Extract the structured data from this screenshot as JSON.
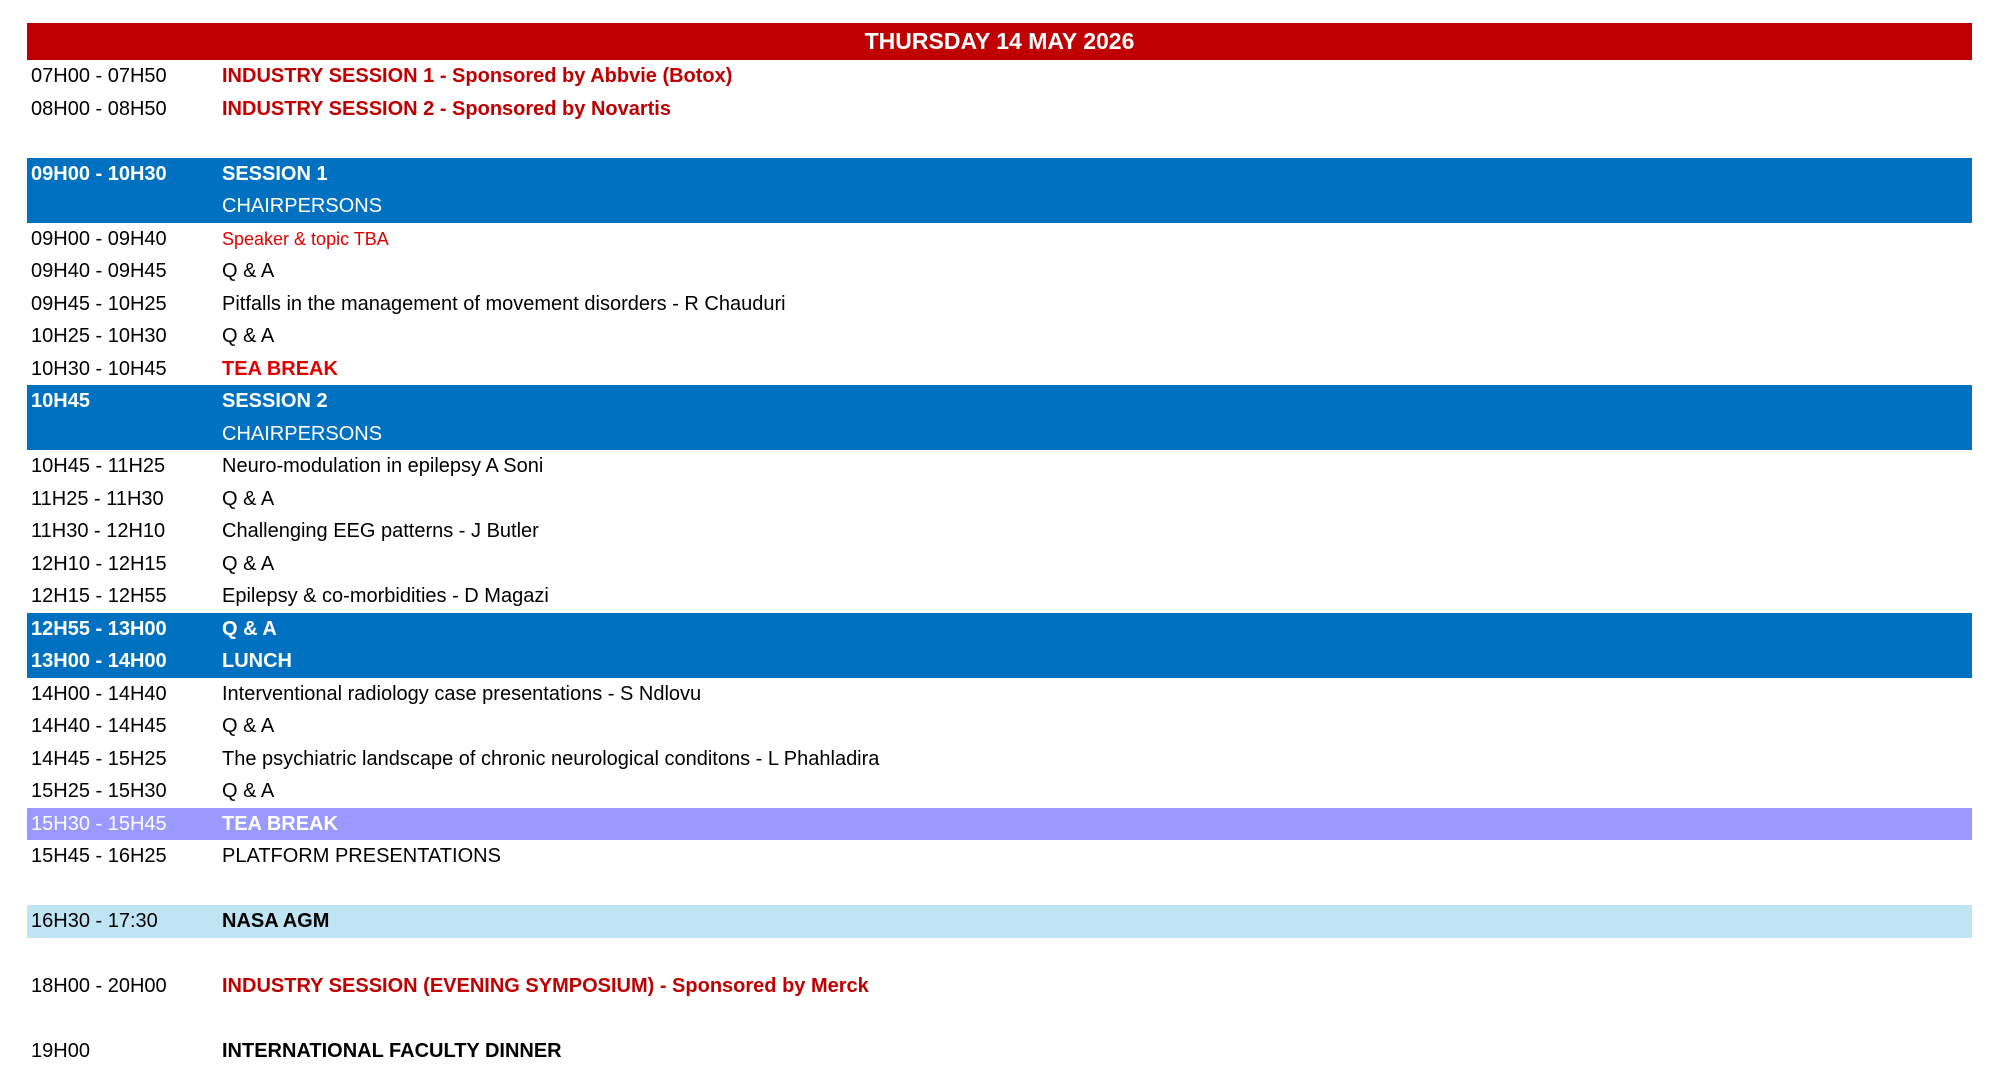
{
  "header": {
    "title": "THURSDAY 14 MAY 2026",
    "color": "#c00000"
  },
  "rows": [
    {
      "time": "07H00 - 07H50",
      "text": "INDUSTRY SESSION 1 - Sponsored by Abbvie (Botox)",
      "style": "red"
    },
    {
      "time": "08H00 - 08H50",
      "text": "INDUSTRY SESSION 2 - Sponsored by Novartis",
      "style": "red"
    },
    {
      "time": "",
      "text": "",
      "style": "blank"
    },
    {
      "time": "09H00 - 10H30",
      "text": "SESSION 1",
      "style": "blue-bold"
    },
    {
      "time": "",
      "text": "CHAIRPERSONS",
      "style": "blue"
    },
    {
      "time": "09H00 - 09H40",
      "text": "Speaker & topic TBA",
      "style": "red-small"
    },
    {
      "time": "09H40 - 09H45",
      "text": "Q & A",
      "style": "normal"
    },
    {
      "time": "09H45 - 10H25",
      "text": "Pitfalls in the management of movement disorders - R Chauduri",
      "style": "normal"
    },
    {
      "time": "10H25 - 10H30",
      "text": "Q & A",
      "style": "normal"
    },
    {
      "time": "10H30 - 10H45",
      "text": "TEA BREAK",
      "style": "red-bold"
    },
    {
      "time": "10H45",
      "text": "SESSION 2",
      "style": "blue-bold"
    },
    {
      "time": "",
      "text": "CHAIRPERSONS",
      "style": "blue"
    },
    {
      "time": "10H45 - 11H25",
      "text": "Neuro-modulation in epilepsy A Soni",
      "style": "normal"
    },
    {
      "time": "11H25 - 11H30",
      "text": "Q & A",
      "style": "normal"
    },
    {
      "time": "11H30 - 12H10",
      "text": "Challenging EEG patterns - J Butler",
      "style": "normal"
    },
    {
      "time": "12H10 - 12H15",
      "text": "Q & A",
      "style": "normal"
    },
    {
      "time": "12H15 - 12H55",
      "text": "Epilepsy & co-morbidities - D Magazi",
      "style": "normal"
    },
    {
      "time": "12H55 - 13H00",
      "text": "Q & A",
      "style": "blue-bold"
    },
    {
      "time": "13H00 - 14H00",
      "text": "LUNCH",
      "style": "blue-bold"
    },
    {
      "time": "14H00 - 14H40",
      "text": "Interventional radiology case presentations - S Ndlovu",
      "style": "normal"
    },
    {
      "time": "14H40 - 14H45",
      "text": "Q & A",
      "style": "normal"
    },
    {
      "time": "14H45 - 15H25",
      "text": "The psychiatric landscape of chronic neurological conditons - L Phahladira",
      "style": "normal"
    },
    {
      "time": "15H25 - 15H30",
      "text": "Q & A",
      "style": "normal"
    },
    {
      "time": "15H30 - 15H45",
      "text": "TEA BREAK",
      "style": "purple"
    },
    {
      "time": "15H45 - 16H25",
      "text": "PLATFORM PRESENTATIONS",
      "style": "normal"
    },
    {
      "time": "",
      "text": "",
      "style": "blank"
    },
    {
      "time": "16H30 - 17:30",
      "text": "NASA AGM",
      "style": "lightblue"
    },
    {
      "time": "",
      "text": "",
      "style": "blank"
    },
    {
      "time": "18H00 - 20H00",
      "text": "INDUSTRY SESSION (EVENING SYMPOSIUM) - Sponsored by Merck",
      "style": "red"
    },
    {
      "time": "",
      "text": "",
      "style": "blank"
    },
    {
      "time": "19H00",
      "text": "INTERNATIONAL FACULTY DINNER",
      "style": "bold"
    }
  ],
  "colors": {
    "session_blue": "#0070c0",
    "tea_purple": "#9999ff",
    "agm_light_blue": "#bfe4f4",
    "industry_red": "#c00000"
  }
}
